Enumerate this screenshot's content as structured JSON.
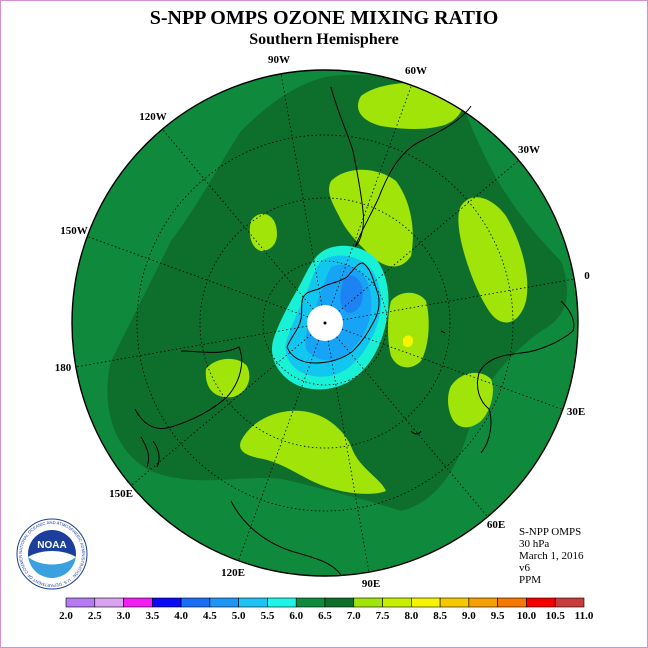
{
  "header": {
    "title": "S-NPP OMPS OZONE MIXING RATIO",
    "subtitle": "Southern Hemisphere"
  },
  "map": {
    "projection": "south polar stereographic",
    "longitude_labels": [
      "90W",
      "60W",
      "30W",
      "0",
      "30E",
      "60E",
      "90E",
      "120E",
      "150E",
      "180",
      "150W",
      "120W"
    ],
    "field_colors": {
      "low_6_0_6_5": "#0f8a3c",
      "mid_6_5_7_0": "#0e6f2c",
      "high_7_0_7_5": "#a0e40a",
      "high_7_5_8_0": "#c6f000",
      "hole_5_5_6_0": "#19f1d6",
      "hole_5_0_5_5": "#12c7ef",
      "hole_4_5_5_0": "#18a4f6",
      "hole_4_0_4_5": "#1d83f4"
    }
  },
  "info_block": {
    "instrument": "S-NPP OMPS",
    "level": "30 hPa",
    "date": "March 1, 2016",
    "version": "v6",
    "units": "PPM"
  },
  "logo": {
    "text": "NOAA",
    "ring_text": "NATIONAL OCEANIC AND ATMOSPHERIC ADMINISTRATION · U.S. DEPARTMENT OF COMMERCE"
  },
  "colorbar": {
    "labels": [
      "2.0",
      "2.5",
      "3.0",
      "3.5",
      "4.0",
      "4.5",
      "5.0",
      "5.5",
      "6.0",
      "6.5",
      "7.0",
      "7.5",
      "8.0",
      "8.5",
      "9.0",
      "9.5",
      "10.0",
      "10.5",
      "11.0"
    ],
    "colors": [
      "#b57bf0",
      "#d9a3f0",
      "#f01ef0",
      "#0a0af5",
      "#1a6ef5",
      "#1e96f5",
      "#1ec3f5",
      "#1ef5e6",
      "#0f8a3c",
      "#0e6f2c",
      "#a0e40a",
      "#c6f000",
      "#f5f500",
      "#f5c800",
      "#f5a000",
      "#f57800",
      "#f50000",
      "#c83c3c",
      "#8c5a3c"
    ]
  }
}
